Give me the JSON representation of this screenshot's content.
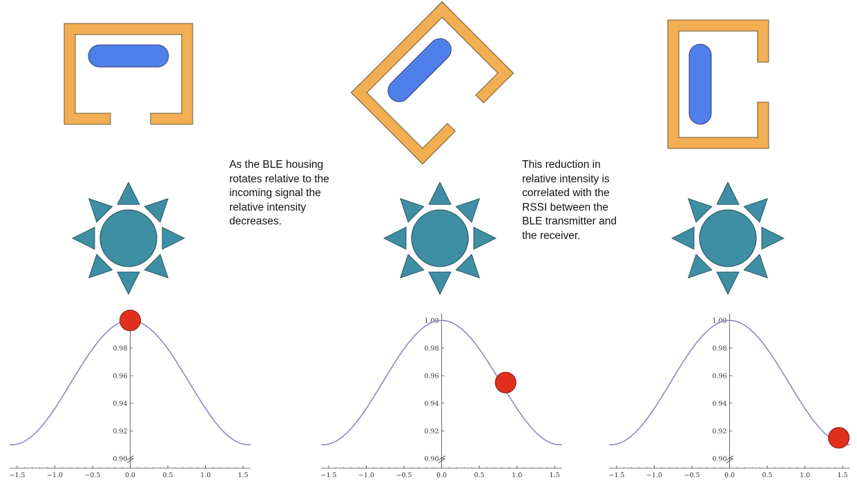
{
  "captions": {
    "left": [
      "As the BLE housing",
      "rotates relative to the",
      "incoming signal the",
      "relative intensity",
      "decreases."
    ],
    "right": [
      "This reduction in",
      "relative intensity is",
      "correlated with the",
      "RSSI between the",
      "BLE transmitter and",
      "the receiver."
    ]
  },
  "colors": {
    "housing": "#F2AE52",
    "antenna": "#4F7FE8",
    "sun": "#3E8FA3",
    "curve": "#8C86C4",
    "marker": "#E3301E",
    "axis": "#444444"
  },
  "icons": [
    "ble-housing-icon",
    "sun-signal-icon"
  ],
  "chart_data": [
    {
      "type": "line",
      "title": "",
      "xlabel": "",
      "ylabel": "",
      "xlim": [
        -1.6,
        1.6
      ],
      "ylim": [
        0.9,
        1.0
      ],
      "x_ticks": [
        "-1.5",
        "-1.0",
        "-0.5",
        "0.0",
        "0.5",
        "1.0",
        "1.5"
      ],
      "y_ticks": [
        "0.90",
        "0.92",
        "0.94",
        "0.96",
        "0.98",
        "1.00"
      ],
      "y_tick_labels_shown": [
        "0.90",
        "0.92",
        "0.94",
        "0.96",
        "0.98",
        "1."
      ],
      "curve": "0.955 + 0.045*cos(2x)",
      "marker": {
        "x": 0.0,
        "y": 1.0
      },
      "housing_rotation_deg": 0
    },
    {
      "type": "line",
      "title": "",
      "xlabel": "",
      "ylabel": "",
      "xlim": [
        -1.6,
        1.6
      ],
      "ylim": [
        0.9,
        1.0
      ],
      "x_ticks": [
        "-1.5",
        "-1.0",
        "-0.5",
        "0.0",
        "0.5",
        "1.0",
        "1.5"
      ],
      "y_ticks": [
        "0.90",
        "0.92",
        "0.94",
        "0.96",
        "0.98",
        "1.00"
      ],
      "y_tick_labels_shown": [
        "0.90",
        "0.92",
        "0.94",
        "0.96",
        "0.98",
        "1.00"
      ],
      "curve": "0.955 + 0.045*cos(2x)",
      "marker": {
        "x": 0.85,
        "y": 0.955
      },
      "housing_rotation_deg": -45
    },
    {
      "type": "line",
      "title": "",
      "xlabel": "",
      "ylabel": "",
      "xlim": [
        -1.6,
        1.6
      ],
      "ylim": [
        0.9,
        1.0
      ],
      "x_ticks": [
        "-1.5",
        "-1.0",
        "-0.5",
        "0.0",
        "0.5",
        "1.0",
        "1.5"
      ],
      "y_ticks": [
        "0.90",
        "0.92",
        "0.94",
        "0.96",
        "0.98",
        "1.00"
      ],
      "y_tick_labels_shown": [
        "0.90",
        "0.92",
        "0.94",
        "0.96",
        "0.98",
        "1.00"
      ],
      "curve": "0.955 + 0.045*cos(2x)",
      "marker": {
        "x": 1.45,
        "y": 0.915
      },
      "housing_rotation_deg": -90
    }
  ]
}
